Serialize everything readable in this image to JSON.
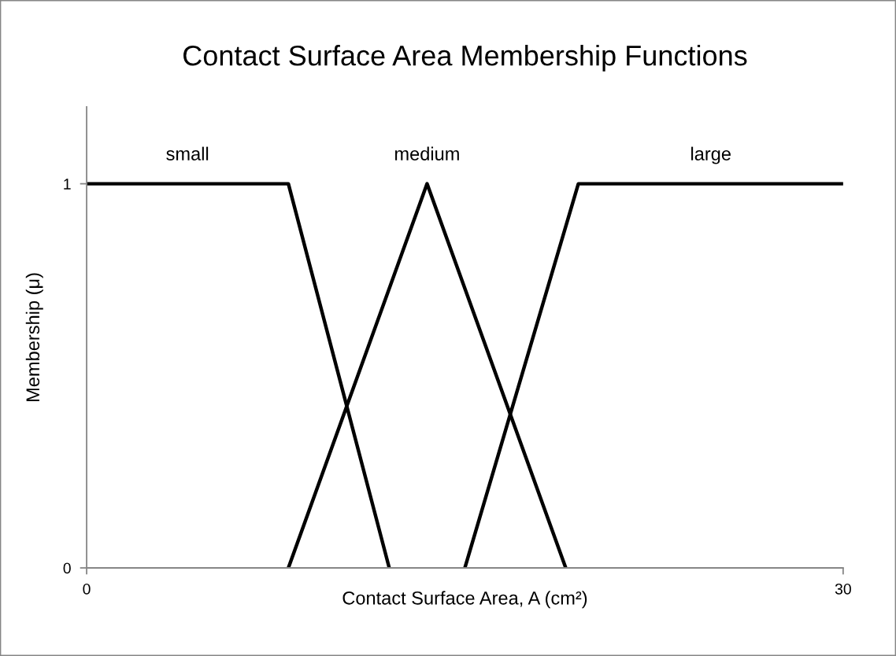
{
  "chart_data": {
    "type": "line",
    "title": "Contact Surface Area Membership Functions",
    "xlabel": "Contact Surface Area, A (cm²)",
    "ylabel": "Membership (μ)",
    "xlim": [
      0,
      30
    ],
    "xticks": [
      0,
      30
    ],
    "ylim": [
      0,
      1.2
    ],
    "yticks": [
      0,
      1
    ],
    "grid": false,
    "marker": "none",
    "line_style": "solid",
    "series": [
      {
        "name": "small",
        "color": "#000000",
        "x": [
          0,
          8,
          12
        ],
        "values": [
          1,
          1,
          0
        ]
      },
      {
        "name": "medium",
        "color": "#000000",
        "x": [
          8,
          13.5,
          19
        ],
        "values": [
          0,
          1,
          0
        ]
      },
      {
        "name": "large",
        "color": "#000000",
        "x": [
          15,
          19.5,
          30
        ],
        "values": [
          0,
          1,
          1
        ]
      }
    ]
  }
}
